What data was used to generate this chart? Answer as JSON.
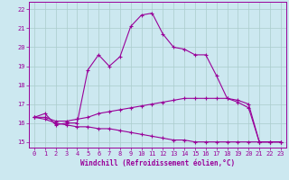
{
  "x": [
    0,
    1,
    2,
    3,
    4,
    5,
    6,
    7,
    8,
    9,
    10,
    11,
    12,
    13,
    14,
    15,
    16,
    17,
    18,
    19,
    20,
    21,
    22,
    23
  ],
  "line1": [
    16.3,
    16.5,
    15.9,
    16.0,
    16.0,
    18.8,
    19.6,
    19.0,
    19.5,
    21.1,
    21.7,
    21.8,
    20.7,
    20.0,
    19.9,
    19.6,
    19.6,
    18.5,
    17.3,
    17.1,
    16.8,
    15.0,
    15.0,
    15.0
  ],
  "line2": [
    16.3,
    16.3,
    16.1,
    16.1,
    16.2,
    16.3,
    16.5,
    16.6,
    16.7,
    16.8,
    16.9,
    17.0,
    17.1,
    17.2,
    17.3,
    17.3,
    17.3,
    17.3,
    17.3,
    17.2,
    17.0,
    15.0,
    15.0,
    15.0
  ],
  "line3": [
    16.3,
    16.2,
    16.0,
    15.9,
    15.8,
    15.8,
    15.7,
    15.7,
    15.6,
    15.5,
    15.4,
    15.3,
    15.2,
    15.1,
    15.1,
    15.0,
    15.0,
    15.0,
    15.0,
    15.0,
    15.0,
    15.0,
    15.0,
    15.0
  ],
  "color": "#990099",
  "bg_color": "#cce8f0",
  "grid_color": "#aacccc",
  "xlim": [
    -0.5,
    23.5
  ],
  "ylim": [
    14.7,
    22.4
  ],
  "yticks": [
    15,
    16,
    17,
    18,
    19,
    20,
    21,
    22
  ],
  "xticks": [
    0,
    1,
    2,
    3,
    4,
    5,
    6,
    7,
    8,
    9,
    10,
    11,
    12,
    13,
    14,
    15,
    16,
    17,
    18,
    19,
    20,
    21,
    22,
    23
  ],
  "xlabel": "Windchill (Refroidissement éolien,°C)"
}
